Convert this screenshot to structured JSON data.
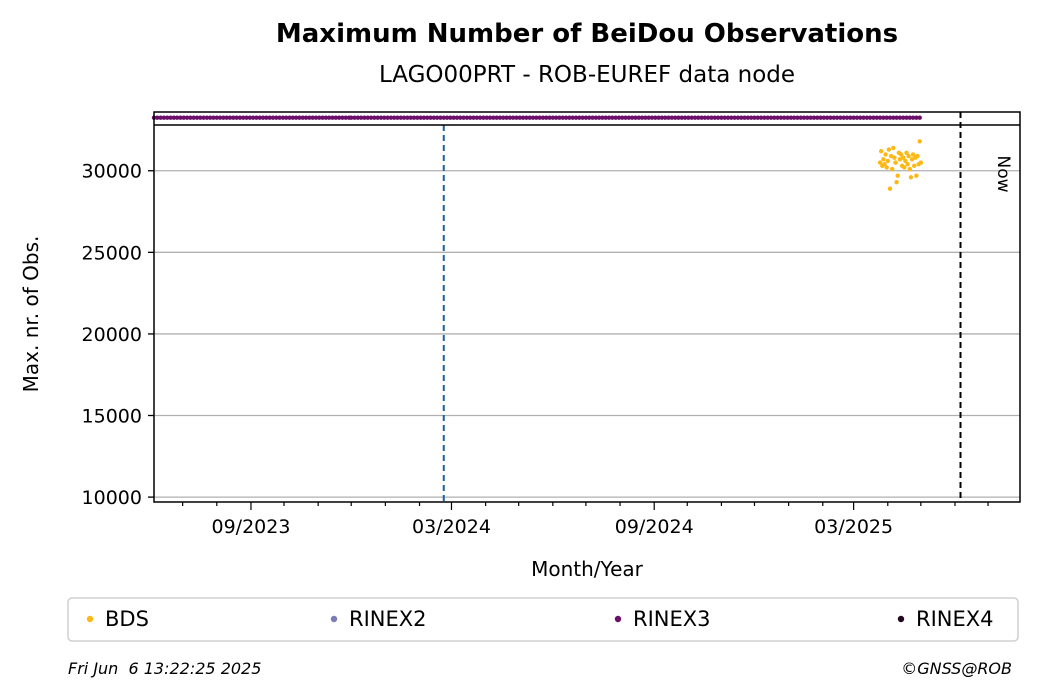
{
  "chart_data": {
    "type": "scatter",
    "title": "Maximum Number of BeiDou Observations",
    "subtitle": "LAGO00PRT - ROB-EUREF data node",
    "xlabel": "Month/Year",
    "ylabel": "Max. nr. of Obs.",
    "x_ticks": [
      "09/2023",
      "03/2024",
      "09/2024",
      "03/2025"
    ],
    "y_ticks": [
      10000,
      15000,
      20000,
      25000,
      30000
    ],
    "ylim": [
      9700,
      33600
    ],
    "xlim": [
      "2023-06-05",
      "2025-07-30"
    ],
    "grid": "horizontal",
    "now_label": "Now",
    "now_date": "2025-06-06",
    "marker_line_date": "2024-02-23",
    "colors": {
      "BDS": "#fdb813",
      "RINEX2": "#7a7bb8",
      "RINEX3": "#6b0f6b",
      "RINEX4": "#22081f",
      "marker_line": "#1f5fa8",
      "now_line": "#000000",
      "grid": "#b0b0b0"
    },
    "legend": {
      "placement": "bottom",
      "entries": [
        "BDS",
        "RINEX2",
        "RINEX3",
        "RINEX4"
      ]
    },
    "series": [
      {
        "name": "BDS",
        "points": [
          [
            "2025-03-25",
            30500
          ],
          [
            "2025-03-26",
            31200
          ],
          [
            "2025-03-27",
            30300
          ],
          [
            "2025-03-28",
            30700
          ],
          [
            "2025-03-29",
            30400
          ],
          [
            "2025-03-30",
            31000
          ],
          [
            "2025-03-31",
            30200
          ],
          [
            "2025-04-01",
            30600
          ],
          [
            "2025-04-02",
            31300
          ],
          [
            "2025-04-03",
            28900
          ],
          [
            "2025-04-04",
            30900
          ],
          [
            "2025-04-05",
            30100
          ],
          [
            "2025-04-06",
            31400
          ],
          [
            "2025-04-07",
            30800
          ],
          [
            "2025-04-08",
            30500
          ],
          [
            "2025-04-09",
            29300
          ],
          [
            "2025-04-10",
            29700
          ],
          [
            "2025-04-11",
            31100
          ],
          [
            "2025-04-12",
            30700
          ],
          [
            "2025-04-13",
            31000
          ],
          [
            "2025-04-14",
            30300
          ],
          [
            "2025-04-15",
            30800
          ],
          [
            "2025-04-16",
            30200
          ],
          [
            "2025-04-17",
            30600
          ],
          [
            "2025-04-18",
            31100
          ],
          [
            "2025-04-19",
            30400
          ],
          [
            "2025-04-20",
            30900
          ],
          [
            "2025-04-21",
            30100
          ],
          [
            "2025-04-22",
            29600
          ],
          [
            "2025-04-23",
            30700
          ],
          [
            "2025-04-24",
            31000
          ],
          [
            "2025-04-25",
            30300
          ],
          [
            "2025-04-26",
            30800
          ],
          [
            "2025-04-27",
            29700
          ],
          [
            "2025-04-28",
            30900
          ],
          [
            "2025-04-29",
            30400
          ],
          [
            "2025-04-30",
            31800
          ],
          [
            "2025-05-01",
            30500
          ]
        ]
      },
      {
        "name": "RINEX3",
        "y": 33250,
        "segments": [
          [
            "2023-06-05",
            "2023-11-30"
          ],
          [
            "2023-12-01",
            "2024-02-29"
          ],
          [
            "2024-03-03",
            "2025-05-01"
          ]
        ],
        "point_step_days": 3
      }
    ]
  },
  "footer": {
    "timestamp": "Fri Jun  6 13:22:25 2025",
    "credit": "©GNSS@ROB"
  }
}
